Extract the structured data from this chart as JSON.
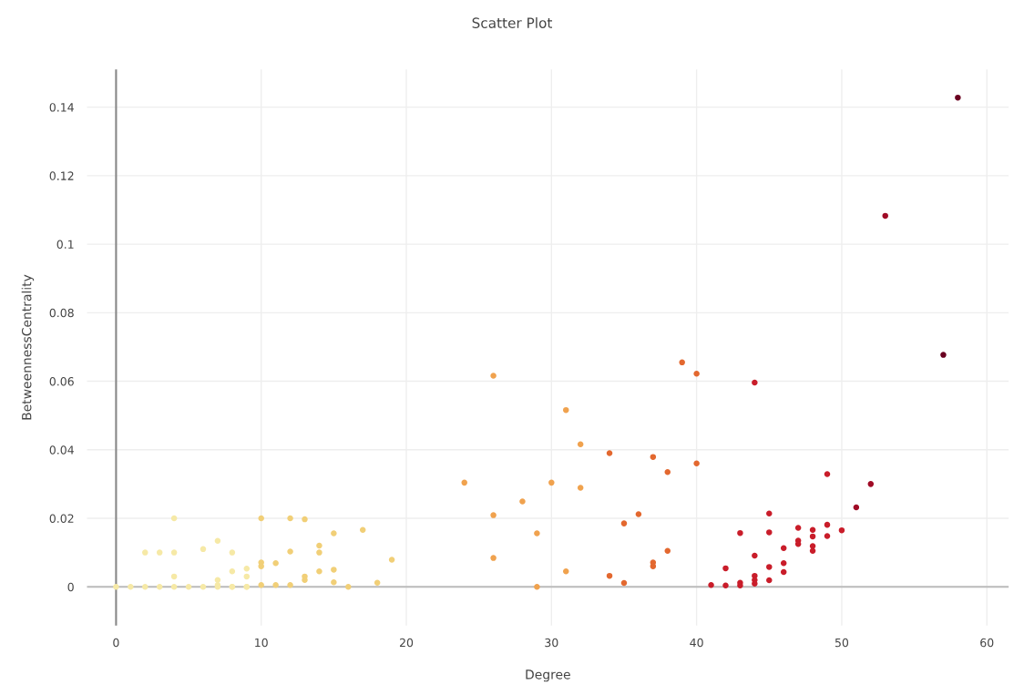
{
  "chart_data": {
    "type": "scatter",
    "title": "Scatter Plot",
    "xlabel": "Degree",
    "ylabel": "BetweennessCentrality",
    "xlim": [
      -2,
      61.5
    ],
    "ylim": [
      -0.0113,
      0.151
    ],
    "xticks": [
      0,
      10,
      20,
      30,
      40,
      50,
      60
    ],
    "yticks": [
      0,
      0.02,
      0.04,
      0.06,
      0.08,
      0.1,
      0.12,
      0.14
    ],
    "grid": true,
    "marker": "circle",
    "legend": false,
    "ref_lines": [
      {
        "axis": "x",
        "value": 0,
        "color": "#888888"
      },
      {
        "axis": "y",
        "value": 0,
        "color": "#bbbbbb"
      }
    ],
    "series": [
      {
        "color": "#f6e9a6",
        "x": [
          0,
          1,
          2,
          3,
          4,
          5,
          6,
          7,
          8,
          9,
          2,
          3,
          4,
          4,
          6,
          7,
          8,
          4,
          7,
          7,
          8,
          8,
          9,
          9,
          9
        ],
        "values": [
          0,
          0,
          0,
          0,
          0,
          0,
          0,
          0,
          0,
          0,
          0.01,
          0.01,
          0.01,
          0.02,
          0.011,
          0.0134,
          0.01,
          0.003,
          0.002,
          0.0005,
          0.0045,
          0,
          0.0053,
          0.003,
          0
        ]
      },
      {
        "color": "#f1cf77",
        "x": [
          10,
          12,
          13,
          15,
          17,
          19,
          10,
          10,
          10,
          11,
          12,
          11,
          12,
          13,
          13,
          14,
          14,
          14,
          15,
          15,
          16,
          18
        ],
        "values": [
          0.02,
          0.02,
          0.0197,
          0.0156,
          0.0166,
          0.0079,
          0.0071,
          0.006,
          0.0005,
          0.0069,
          0.0103,
          0.0005,
          0.0005,
          0.003,
          0.002,
          0.012,
          0.01,
          0.0045,
          0.005,
          0.0013,
          0,
          0.0012
        ]
      },
      {
        "color": "#f0a24e",
        "x": [
          24,
          26,
          26,
          26,
          28,
          29,
          29,
          30,
          31,
          31,
          32,
          32
        ],
        "values": [
          0.0304,
          0.0616,
          0.0209,
          0.0084,
          0.0249,
          0.0156,
          0,
          0.0304,
          0.0516,
          0.0045,
          0.0416,
          0.0289
        ]
      },
      {
        "color": "#e3682f",
        "x": [
          34,
          34,
          35,
          35,
          36,
          37,
          37,
          37,
          38,
          38,
          39,
          40,
          40
        ],
        "values": [
          0.039,
          0.0032,
          0.0185,
          0.0011,
          0.0212,
          0.0379,
          0.0071,
          0.006,
          0.0335,
          0.0105,
          0.0655,
          0.0622,
          0.036
        ]
      },
      {
        "color": "#c91d2a",
        "x": [
          41,
          42,
          42,
          43,
          43,
          43,
          44,
          44,
          44,
          44,
          44,
          45,
          45,
          45,
          45,
          46,
          46,
          46,
          47,
          47,
          47,
          48,
          48,
          48,
          48,
          49,
          49,
          49,
          50
        ],
        "values": [
          0.0005,
          0.0054,
          0.0004,
          0.0157,
          0.0012,
          0.0004,
          0.0596,
          0.0091,
          0.0032,
          0.002,
          0.0009,
          0.0214,
          0.0159,
          0.0058,
          0.0019,
          0.0113,
          0.0069,
          0.0043,
          0.0172,
          0.0135,
          0.0125,
          0.0166,
          0.0147,
          0.0119,
          0.0105,
          0.0329,
          0.0181,
          0.0148,
          0.0165
        ]
      },
      {
        "color": "#a00b26",
        "x": [
          51,
          52,
          53
        ],
        "values": [
          0.0232,
          0.03,
          0.1083
        ]
      },
      {
        "color": "#6a0020",
        "x": [
          57,
          58
        ],
        "values": [
          0.0677,
          0.1428
        ]
      }
    ]
  }
}
